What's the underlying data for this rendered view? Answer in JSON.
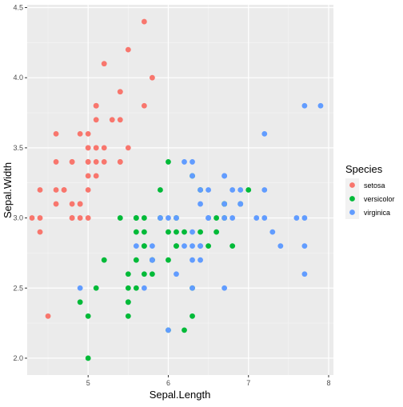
{
  "chart_data": {
    "type": "scatter",
    "title": "",
    "xlabel": "Sepal.Length",
    "ylabel": "Sepal.Width",
    "xlim": [
      4.24,
      8.06
    ],
    "ylim": [
      1.88,
      4.52
    ],
    "x_ticks": [
      5,
      6,
      7,
      8
    ],
    "y_ticks": [
      2.0,
      2.5,
      3.0,
      3.5,
      4.0,
      4.5
    ],
    "x_tick_labels": [
      "5",
      "6",
      "7",
      "8"
    ],
    "y_tick_labels": [
      "2.0",
      "2.5",
      "3.0",
      "3.5",
      "4.0",
      "4.5"
    ],
    "grid": true,
    "panel_background": "#ebebeb",
    "legend": {
      "title": "Species",
      "placement": "right"
    },
    "series": [
      {
        "name": "setosa",
        "color": "#f8766d",
        "points": [
          [
            5.1,
            3.5
          ],
          [
            4.9,
            3.0
          ],
          [
            4.7,
            3.2
          ],
          [
            4.6,
            3.1
          ],
          [
            5.0,
            3.6
          ],
          [
            5.4,
            3.9
          ],
          [
            4.6,
            3.4
          ],
          [
            5.0,
            3.4
          ],
          [
            4.4,
            2.9
          ],
          [
            4.9,
            3.1
          ],
          [
            5.4,
            3.7
          ],
          [
            4.8,
            3.4
          ],
          [
            4.8,
            3.0
          ],
          [
            4.3,
            3.0
          ],
          [
            5.8,
            4.0
          ],
          [
            5.7,
            4.4
          ],
          [
            5.4,
            3.9
          ],
          [
            5.1,
            3.5
          ],
          [
            5.7,
            3.8
          ],
          [
            5.1,
            3.8
          ],
          [
            5.4,
            3.4
          ],
          [
            5.1,
            3.7
          ],
          [
            4.6,
            3.6
          ],
          [
            5.1,
            3.3
          ],
          [
            4.8,
            3.4
          ],
          [
            5.0,
            3.0
          ],
          [
            5.0,
            3.4
          ],
          [
            5.2,
            3.5
          ],
          [
            5.2,
            3.4
          ],
          [
            4.7,
            3.2
          ],
          [
            4.8,
            3.1
          ],
          [
            5.4,
            3.4
          ],
          [
            5.2,
            4.1
          ],
          [
            5.5,
            4.2
          ],
          [
            4.9,
            3.1
          ],
          [
            5.0,
            3.2
          ],
          [
            5.5,
            3.5
          ],
          [
            4.9,
            3.6
          ],
          [
            4.4,
            3.0
          ],
          [
            5.1,
            3.4
          ],
          [
            5.0,
            3.5
          ],
          [
            4.5,
            2.3
          ],
          [
            4.4,
            3.2
          ],
          [
            5.0,
            3.5
          ],
          [
            5.1,
            3.8
          ],
          [
            4.8,
            3.0
          ],
          [
            5.1,
            3.8
          ],
          [
            4.6,
            3.2
          ],
          [
            5.3,
            3.7
          ],
          [
            5.0,
            3.3
          ]
        ]
      },
      {
        "name": "versicolor",
        "color": "#00ba38",
        "points": [
          [
            7.0,
            3.2
          ],
          [
            6.4,
            3.2
          ],
          [
            6.9,
            3.1
          ],
          [
            5.5,
            2.3
          ],
          [
            6.5,
            2.8
          ],
          [
            5.7,
            2.8
          ],
          [
            6.3,
            3.3
          ],
          [
            4.9,
            2.4
          ],
          [
            6.6,
            2.9
          ],
          [
            5.2,
            2.7
          ],
          [
            5.0,
            2.0
          ],
          [
            5.9,
            3.0
          ],
          [
            6.0,
            2.2
          ],
          [
            6.1,
            2.9
          ],
          [
            5.6,
            2.9
          ],
          [
            6.7,
            3.1
          ],
          [
            5.6,
            3.0
          ],
          [
            5.8,
            2.7
          ],
          [
            6.2,
            2.2
          ],
          [
            5.6,
            2.5
          ],
          [
            5.9,
            3.2
          ],
          [
            6.1,
            2.8
          ],
          [
            6.3,
            2.5
          ],
          [
            6.1,
            2.8
          ],
          [
            6.4,
            2.9
          ],
          [
            6.6,
            3.0
          ],
          [
            6.8,
            2.8
          ],
          [
            6.7,
            3.0
          ],
          [
            6.0,
            2.9
          ],
          [
            5.7,
            2.6
          ],
          [
            5.5,
            2.4
          ],
          [
            5.5,
            2.4
          ],
          [
            5.8,
            2.7
          ],
          [
            6.0,
            2.7
          ],
          [
            5.4,
            3.0
          ],
          [
            6.0,
            3.4
          ],
          [
            6.7,
            3.1
          ],
          [
            6.3,
            2.3
          ],
          [
            5.6,
            3.0
          ],
          [
            5.5,
            2.5
          ],
          [
            5.5,
            2.6
          ],
          [
            6.1,
            3.0
          ],
          [
            5.8,
            2.6
          ],
          [
            5.0,
            2.3
          ],
          [
            5.6,
            2.7
          ],
          [
            5.7,
            3.0
          ],
          [
            5.7,
            2.9
          ],
          [
            6.2,
            2.9
          ],
          [
            5.1,
            2.5
          ],
          [
            5.7,
            2.8
          ]
        ]
      },
      {
        "name": "virginica",
        "color": "#619cff",
        "points": [
          [
            6.3,
            3.3
          ],
          [
            5.8,
            2.7
          ],
          [
            7.1,
            3.0
          ],
          [
            6.3,
            2.9
          ],
          [
            6.5,
            3.0
          ],
          [
            7.6,
            3.0
          ],
          [
            4.9,
            2.5
          ],
          [
            7.3,
            2.9
          ],
          [
            6.7,
            2.5
          ],
          [
            7.2,
            3.6
          ],
          [
            6.5,
            3.2
          ],
          [
            6.4,
            2.7
          ],
          [
            6.8,
            3.0
          ],
          [
            5.7,
            2.5
          ],
          [
            5.8,
            2.8
          ],
          [
            6.4,
            3.2
          ],
          [
            6.5,
            3.0
          ],
          [
            7.7,
            3.8
          ],
          [
            7.7,
            2.6
          ],
          [
            6.0,
            2.2
          ],
          [
            6.9,
            3.2
          ],
          [
            5.6,
            2.8
          ],
          [
            7.7,
            2.8
          ],
          [
            6.3,
            2.7
          ],
          [
            6.7,
            3.3
          ],
          [
            7.2,
            3.2
          ],
          [
            6.2,
            2.8
          ],
          [
            6.1,
            3.0
          ],
          [
            6.4,
            2.8
          ],
          [
            7.2,
            3.0
          ],
          [
            7.4,
            2.8
          ],
          [
            7.9,
            3.8
          ],
          [
            6.4,
            2.8
          ],
          [
            6.3,
            2.8
          ],
          [
            6.1,
            2.6
          ],
          [
            7.7,
            3.0
          ],
          [
            6.3,
            3.4
          ],
          [
            6.4,
            3.1
          ],
          [
            6.0,
            3.0
          ],
          [
            6.9,
            3.1
          ],
          [
            6.7,
            3.1
          ],
          [
            6.9,
            3.1
          ],
          [
            5.8,
            2.7
          ],
          [
            6.8,
            3.2
          ],
          [
            6.7,
            3.3
          ],
          [
            6.7,
            3.0
          ],
          [
            6.3,
            2.5
          ],
          [
            6.5,
            3.0
          ],
          [
            6.2,
            3.4
          ],
          [
            5.9,
            3.0
          ]
        ]
      }
    ]
  }
}
